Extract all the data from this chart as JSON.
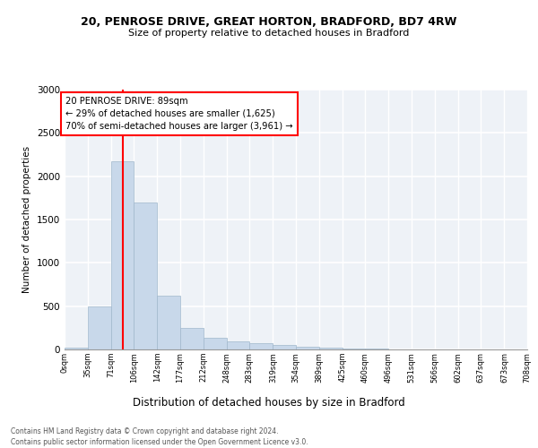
{
  "title1": "20, PENROSE DRIVE, GREAT HORTON, BRADFORD, BD7 4RW",
  "title2": "Size of property relative to detached houses in Bradford",
  "xlabel": "Distribution of detached houses by size in Bradford",
  "ylabel": "Number of detached properties",
  "bins": [
    "0sqm",
    "35sqm",
    "71sqm",
    "106sqm",
    "142sqm",
    "177sqm",
    "212sqm",
    "248sqm",
    "283sqm",
    "319sqm",
    "354sqm",
    "389sqm",
    "425sqm",
    "460sqm",
    "496sqm",
    "531sqm",
    "566sqm",
    "602sqm",
    "637sqm",
    "673sqm",
    "708sqm"
  ],
  "bin_edges": [
    0,
    35,
    71,
    106,
    142,
    177,
    212,
    248,
    283,
    319,
    354,
    389,
    425,
    460,
    496,
    531,
    566,
    602,
    637,
    673,
    708
  ],
  "values": [
    20,
    500,
    2175,
    1700,
    625,
    250,
    130,
    90,
    70,
    50,
    35,
    25,
    15,
    10,
    5,
    4,
    3,
    2,
    1,
    1
  ],
  "bar_color": "#c8d8ea",
  "bar_edge_color": "#a0b8cc",
  "property_size": 89,
  "vline_x": 89,
  "annotation_text": "20 PENROSE DRIVE: 89sqm\n← 29% of detached houses are smaller (1,625)\n70% of semi-detached houses are larger (3,961) →",
  "annotation_box_color": "white",
  "annotation_box_edge": "red",
  "vline_color": "red",
  "ylim": [
    0,
    3000
  ],
  "yticks": [
    0,
    500,
    1000,
    1500,
    2000,
    2500,
    3000
  ],
  "bg_color": "#eef2f7",
  "grid_color": "white",
  "footer1": "Contains HM Land Registry data © Crown copyright and database right 2024.",
  "footer2": "Contains public sector information licensed under the Open Government Licence v3.0."
}
